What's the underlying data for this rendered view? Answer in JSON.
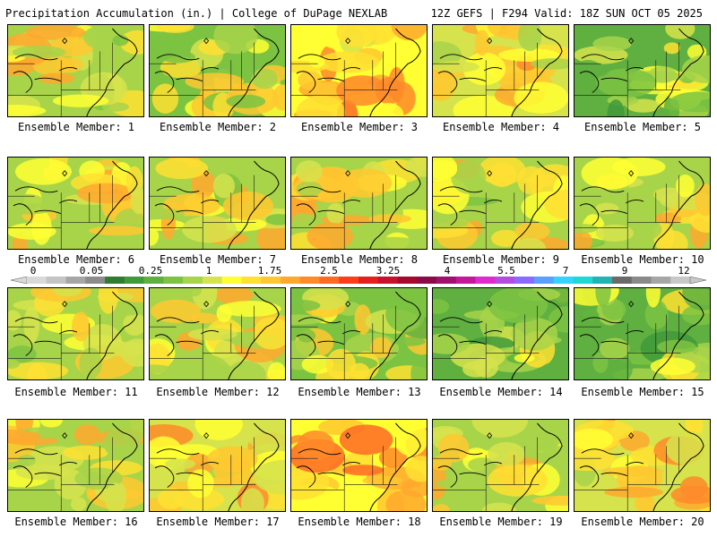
{
  "header": {
    "left": "Precipitation Accumulation (in.) | College of DuPage NEXLAB",
    "right": "12Z GEFS | F294 Valid: 18Z SUN OCT 05 2025"
  },
  "members": [
    {
      "label": "Ensemble Member: 1",
      "wetness": 0.45
    },
    {
      "label": "Ensemble Member: 2",
      "wetness": 0.35
    },
    {
      "label": "Ensemble Member: 3",
      "wetness": 0.75
    },
    {
      "label": "Ensemble Member: 4",
      "wetness": 0.6
    },
    {
      "label": "Ensemble Member: 5",
      "wetness": 0.25
    },
    {
      "label": "Ensemble Member: 6",
      "wetness": 0.5
    },
    {
      "label": "Ensemble Member: 7",
      "wetness": 0.55
    },
    {
      "label": "Ensemble Member: 8",
      "wetness": 0.5
    },
    {
      "label": "Ensemble Member: 9",
      "wetness": 0.45
    },
    {
      "label": "Ensemble Member: 10",
      "wetness": 0.55
    },
    {
      "label": "Ensemble Member: 11",
      "wetness": 0.5
    },
    {
      "label": "Ensemble Member: 12",
      "wetness": 0.5
    },
    {
      "label": "Ensemble Member: 13",
      "wetness": 0.4
    },
    {
      "label": "Ensemble Member: 14",
      "wetness": 0.25
    },
    {
      "label": "Ensemble Member: 15",
      "wetness": 0.3
    },
    {
      "label": "Ensemble Member: 16",
      "wetness": 0.5
    },
    {
      "label": "Ensemble Member: 17",
      "wetness": 0.65
    },
    {
      "label": "Ensemble Member: 18",
      "wetness": 0.7
    },
    {
      "label": "Ensemble Member: 19",
      "wetness": 0.45
    },
    {
      "label": "Ensemble Member: 20",
      "wetness": 0.6
    }
  ],
  "colorbar": {
    "labels": [
      "0",
      "0.05",
      "0.25",
      "1",
      "1.75",
      "2.5",
      "3.25",
      "4",
      "5.5",
      "7",
      "9",
      "12"
    ],
    "colors": [
      "#d9d9d9",
      "#c4c4c4",
      "#a6a6a6",
      "#8c8c8c",
      "#2e7d32",
      "#3f9a3a",
      "#5fb040",
      "#7cc342",
      "#a8d44a",
      "#d6e34c",
      "#ffff33",
      "#ffe033",
      "#ffc830",
      "#ffa82e",
      "#ff8a2a",
      "#ff6a24",
      "#ff3d1a",
      "#e61e1e",
      "#c8102e",
      "#a8082e",
      "#8c0a4a",
      "#a0106e",
      "#c4189a",
      "#e02ad0",
      "#b44ce0",
      "#8c6aff",
      "#5aa0ff",
      "#33d4ff",
      "#1ed8d8",
      "#20b4b4",
      "#6a6a6a",
      "#8a8a8a",
      "#a6a6a6",
      "#c8c8c8"
    ]
  }
}
